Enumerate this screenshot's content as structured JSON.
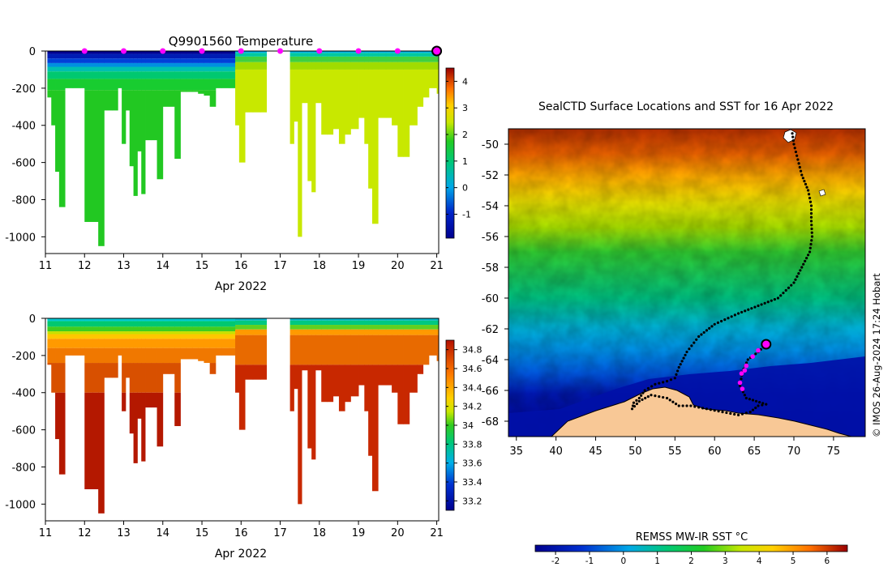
{
  "chart_data": [
    {
      "type": "heatmap",
      "id": "temperature",
      "title": "Q9901560  Temperature",
      "xlabel": "Apr 2022",
      "ylabel": "",
      "xlim": [
        11,
        21.05
      ],
      "ylim": [
        -1090,
        0
      ],
      "x_ticks": [
        11,
        12,
        13,
        14,
        15,
        16,
        17,
        18,
        19,
        20,
        21
      ],
      "x_tick_labels": [
        "11",
        "12",
        "13",
        "14",
        "15",
        "16",
        "17",
        "18",
        "19",
        "20",
        "21"
      ],
      "y_ticks": [
        0,
        -200,
        -400,
        -600,
        -800,
        -1000
      ],
      "y_tick_labels": [
        "0",
        "-200",
        "-400",
        "-600",
        "-800",
        "-1000"
      ],
      "colorbar": {
        "min": -1.9,
        "max": 4.5,
        "ticks": [
          -1,
          0,
          1,
          2,
          3,
          4
        ],
        "tick_labels": [
          "-1",
          "0",
          "1",
          "2",
          "3",
          "4"
        ]
      },
      "surface_markers_x": [
        12,
        13,
        14,
        15,
        16,
        17,
        18,
        19,
        20
      ],
      "latest_marker_x": 21,
      "profile_bottom_depths": [
        [
          11.05,
          250
        ],
        [
          11.15,
          400
        ],
        [
          11.25,
          650
        ],
        [
          11.35,
          840
        ],
        [
          11.5,
          200
        ],
        [
          11.7,
          200
        ],
        [
          11.9,
          200
        ],
        [
          12.0,
          920
        ],
        [
          12.2,
          920
        ],
        [
          12.35,
          1050
        ],
        [
          12.5,
          320
        ],
        [
          12.7,
          320
        ],
        [
          12.85,
          200
        ],
        [
          12.95,
          500
        ],
        [
          13.05,
          320
        ],
        [
          13.15,
          620
        ],
        [
          13.25,
          780
        ],
        [
          13.35,
          540
        ],
        [
          13.45,
          770
        ],
        [
          13.55,
          480
        ],
        [
          13.7,
          480
        ],
        [
          13.85,
          690
        ],
        [
          14.0,
          300
        ],
        [
          14.15,
          300
        ],
        [
          14.3,
          580
        ],
        [
          14.45,
          220
        ],
        [
          14.6,
          220
        ],
        [
          14.75,
          220
        ],
        [
          14.9,
          230
        ],
        [
          15.05,
          240
        ],
        [
          15.2,
          300
        ],
        [
          15.35,
          200
        ],
        [
          15.5,
          200
        ],
        [
          15.7,
          200
        ],
        [
          15.85,
          400
        ],
        [
          15.95,
          600
        ],
        [
          16.1,
          330
        ],
        [
          16.3,
          330
        ],
        [
          16.5,
          330
        ],
        [
          17.25,
          500
        ],
        [
          17.35,
          380
        ],
        [
          17.45,
          1000
        ],
        [
          17.55,
          280
        ],
        [
          17.7,
          700
        ],
        [
          17.8,
          760
        ],
        [
          17.9,
          280
        ],
        [
          18.05,
          450
        ],
        [
          18.2,
          450
        ],
        [
          18.35,
          420
        ],
        [
          18.5,
          500
        ],
        [
          18.65,
          450
        ],
        [
          18.8,
          420
        ],
        [
          19.0,
          360
        ],
        [
          19.15,
          500
        ],
        [
          19.25,
          740
        ],
        [
          19.35,
          930
        ],
        [
          19.5,
          360
        ],
        [
          19.7,
          360
        ],
        [
          19.85,
          400
        ],
        [
          20.0,
          570
        ],
        [
          20.15,
          570
        ],
        [
          20.3,
          400
        ],
        [
          20.5,
          300
        ],
        [
          20.65,
          250
        ],
        [
          20.8,
          200
        ],
        [
          21.0,
          230
        ]
      ]
    },
    {
      "type": "heatmap",
      "id": "salinity",
      "title": "",
      "xlabel": "Apr 2022",
      "ylabel": "",
      "xlim": [
        11,
        21.05
      ],
      "ylim": [
        -1090,
        0
      ],
      "x_ticks": [
        11,
        12,
        13,
        14,
        15,
        16,
        17,
        18,
        19,
        20,
        21
      ],
      "x_tick_labels": [
        "11",
        "12",
        "13",
        "14",
        "15",
        "16",
        "17",
        "18",
        "19",
        "20",
        "21"
      ],
      "y_ticks": [
        0,
        -200,
        -400,
        -600,
        -800,
        -1000
      ],
      "y_tick_labels": [
        "0",
        "-200",
        "-400",
        "-600",
        "-800",
        "-1000"
      ],
      "colorbar": {
        "min": 33.1,
        "max": 34.9,
        "ticks": [
          33.2,
          33.4,
          33.6,
          33.8,
          34,
          34.2,
          34.4,
          34.6,
          34.8
        ],
        "tick_labels": [
          "33.2",
          "33.4",
          "33.6",
          "33.8",
          "34",
          "34.2",
          "34.4",
          "34.6",
          "34.8"
        ]
      }
    },
    {
      "type": "heatmap",
      "id": "sst_map",
      "title": "SealCTD Surface Locations and SST for 16 Apr 2022",
      "xlabel": "",
      "ylabel": "",
      "xlim": [
        34,
        79
      ],
      "ylim": [
        -69,
        -49
      ],
      "x_ticks": [
        35,
        40,
        45,
        50,
        55,
        60,
        65,
        70,
        75
      ],
      "x_tick_labels": [
        "35",
        "40",
        "45",
        "50",
        "55",
        "60",
        "65",
        "70",
        "75"
      ],
      "y_ticks": [
        -50,
        -52,
        -54,
        -56,
        -58,
        -60,
        -62,
        -64,
        -66,
        -68
      ],
      "y_tick_labels": [
        "-50",
        "-52",
        "-54",
        "-56",
        "-58",
        "-60",
        "-62",
        "-64",
        "-66",
        "-68"
      ],
      "colorbar": {
        "label": "REMSS MW-IR SST °C",
        "min": -2.6,
        "max": 6.6,
        "ticks": [
          -2,
          -1,
          0,
          1,
          2,
          3,
          4,
          5,
          6
        ],
        "tick_labels": [
          "-2",
          "-1",
          "0",
          "1",
          "2",
          "3",
          "4",
          "5",
          "6"
        ]
      },
      "track": [
        [
          69.8,
          -49.3
        ],
        [
          70.0,
          -50.0
        ],
        [
          70.5,
          -51.0
        ],
        [
          71.0,
          -52.0
        ],
        [
          71.8,
          -53.0
        ],
        [
          72.2,
          -54.0
        ],
        [
          72.2,
          -55.0
        ],
        [
          72.3,
          -56.0
        ],
        [
          72.0,
          -57.0
        ],
        [
          71.0,
          -58.0
        ],
        [
          70.0,
          -59.0
        ],
        [
          68.0,
          -60.0
        ],
        [
          65.5,
          -60.5
        ],
        [
          63.0,
          -61.0
        ],
        [
          60.0,
          -61.7
        ],
        [
          58.0,
          -62.5
        ],
        [
          56.5,
          -63.5
        ],
        [
          55.5,
          -64.5
        ],
        [
          55.0,
          -65.2
        ],
        [
          54.0,
          -65.4
        ],
        [
          52.5,
          -65.6
        ],
        [
          51.2,
          -66.0
        ],
        [
          50.5,
          -66.5
        ],
        [
          49.8,
          -66.8
        ],
        [
          49.6,
          -67.2
        ],
        [
          50.5,
          -66.7
        ],
        [
          52.0,
          -66.3
        ],
        [
          54.0,
          -66.5
        ],
        [
          55.5,
          -67.0
        ],
        [
          57.0,
          -67.0
        ],
        [
          59.0,
          -67.2
        ],
        [
          61.0,
          -67.4
        ],
        [
          63.0,
          -67.6
        ],
        [
          64.5,
          -67.4
        ],
        [
          65.5,
          -67.0
        ],
        [
          66.5,
          -66.9
        ],
        [
          64.0,
          -66.5
        ],
        [
          63.2,
          -65.7
        ],
        [
          63.5,
          -64.8
        ],
        [
          64.2,
          -64.0
        ],
        [
          65.5,
          -63.5
        ],
        [
          66.5,
          -63.0
        ]
      ],
      "recent_positions": [
        [
          63.2,
          -65.5
        ],
        [
          63.5,
          -65.9
        ],
        [
          63.8,
          -64.7
        ],
        [
          63.4,
          -64.9
        ],
        [
          64.0,
          -64.4
        ],
        [
          64.8,
          -63.8
        ],
        [
          65.5,
          -63.4
        ]
      ],
      "latest_position": [
        66.5,
        -63.0
      ]
    }
  ],
  "credit": "© IMOS 26-Aug-2024 17:24 Hobart"
}
